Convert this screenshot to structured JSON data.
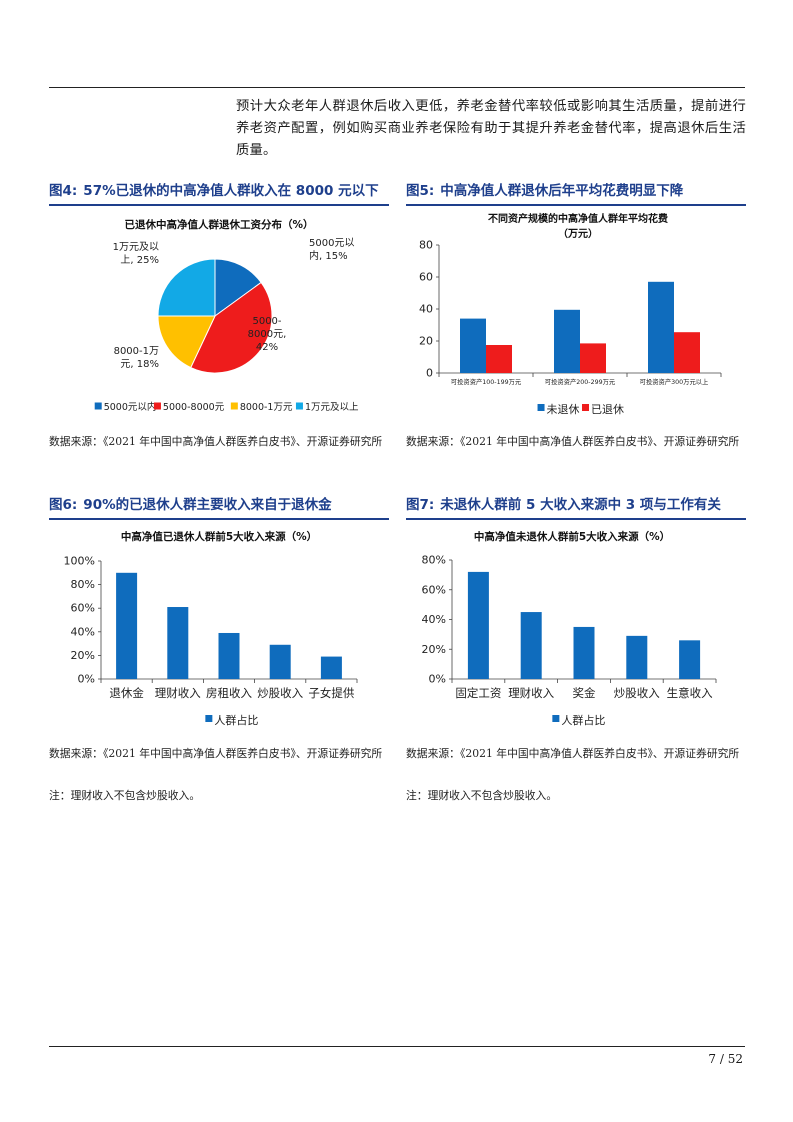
{
  "intro": "预计大众老年人群退休后收入更低，养老金替代率较低或影响其生活质量，提前进行养老资产配置，例如购买商业养老保险有助于其提升养老金替代率，提高退休后生活质量。",
  "figures": [
    {
      "tag": "图4:",
      "title": "57%已退休的中高净值人群收入在 8000 元以下"
    },
    {
      "tag": "图5:",
      "title": "中高净值人群退休后年平均花费明显下降"
    },
    {
      "tag": "图6:",
      "title": "90%的已退休人群主要收入来自于退休金"
    },
    {
      "tag": "图7:",
      "title": "未退休人群前 5 大收入来源中 3 项与工作有关"
    }
  ],
  "source": "数据来源：《2021 年中国中高净值人群医养白皮书》、开源证券研究所",
  "note": "注：理财收入不包含炒股收入。",
  "page_number": "7 / 52",
  "chart_data": [
    {
      "type": "pie",
      "title": "已退休中高净值人群退休工资分布（%）",
      "categories": [
        "5000元以内",
        "5000-8000元",
        "8000-1万元",
        "1万元及以上"
      ],
      "values": [
        15,
        42,
        18,
        25
      ],
      "slice_labels": [
        [
          "5000元以",
          "内, 15%"
        ],
        [
          "5000-",
          "8000元,",
          "42%"
        ],
        [
          "8000-1万",
          "元, 18%"
        ],
        [
          "1万元及以",
          "上, 25%"
        ]
      ],
      "colors": [
        "#0f6cbd",
        "#ee1c1c",
        "#ffc000",
        "#12a9e6"
      ],
      "legend": "bottom"
    },
    {
      "type": "bar",
      "title": [
        "不同资产规模的中高净值人群年平均花费",
        "（万元）"
      ],
      "categories": [
        "可投资资产100-199万元",
        "可投资资产200-299万元",
        "可投资资产300万元以上"
      ],
      "series": [
        {
          "name": "未退休",
          "values": [
            34,
            39.5,
            57
          ],
          "color": "#0f6cbd"
        },
        {
          "name": "已退休",
          "values": [
            17.5,
            18.5,
            25.5
          ],
          "color": "#ee1c1c"
        }
      ],
      "ylim": [
        0,
        80
      ],
      "yticks": [
        "0",
        "20",
        "40",
        "60",
        "80"
      ],
      "legend": "bottom"
    },
    {
      "type": "bar",
      "title": "中高净值已退休人群前5大收入来源（%）",
      "categories": [
        "退休金",
        "理财收入",
        "房租收入",
        "炒股收入",
        "子女提供"
      ],
      "series": [
        {
          "name": "人群占比",
          "values": [
            0.9,
            0.61,
            0.39,
            0.29,
            0.19
          ],
          "color": "#0f6cbd"
        }
      ],
      "ylim": [
        0,
        1
      ],
      "yticks": [
        "0%",
        "20%",
        "40%",
        "60%",
        "80%",
        "100%"
      ],
      "legend": "bottom"
    },
    {
      "type": "bar",
      "title": "中高净值未退休人群前5大收入来源（%）",
      "categories": [
        "固定工资",
        "理财收入",
        "奖金",
        "炒股收入",
        "生意收入"
      ],
      "series": [
        {
          "name": "人群占比",
          "values": [
            0.72,
            0.45,
            0.35,
            0.29,
            0.26
          ],
          "color": "#0f6cbd"
        }
      ],
      "ylim": [
        0,
        0.8
      ],
      "yticks": [
        "0%",
        "20%",
        "40%",
        "60%",
        "80%"
      ],
      "legend": "bottom"
    }
  ]
}
